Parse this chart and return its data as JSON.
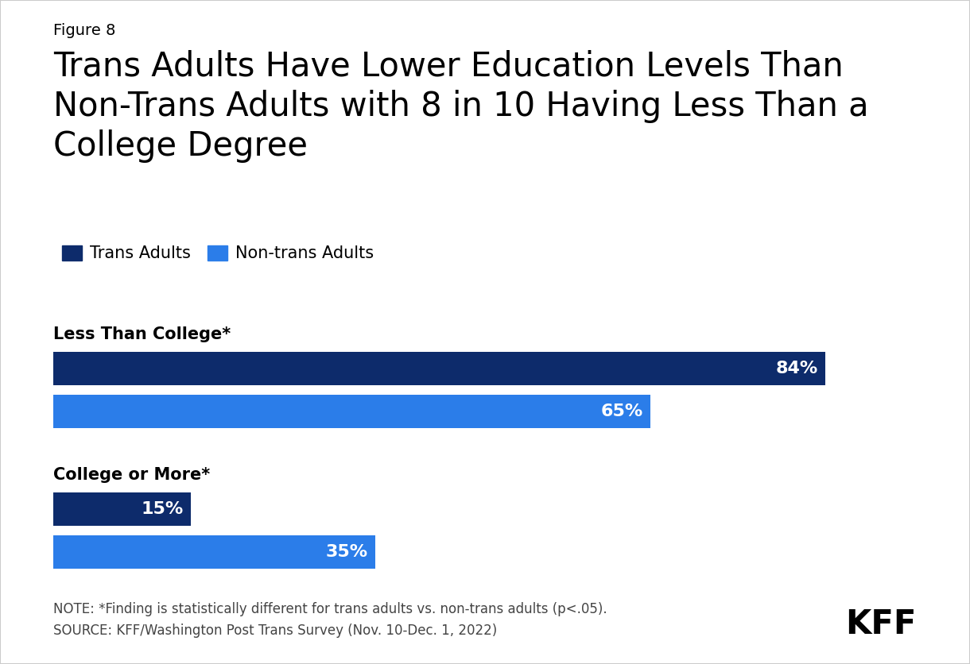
{
  "figure_label": "Figure 8",
  "title": "Trans Adults Have Lower Education Levels Than\nNon-Trans Adults with 8 in 10 Having Less Than a\nCollege Degree",
  "categories": [
    "Less Than College*",
    "College or More*"
  ],
  "trans_values": [
    84,
    15
  ],
  "nontrans_values": [
    65,
    35
  ],
  "trans_color": "#0d2b6b",
  "nontrans_color": "#2b7de9",
  "legend_labels": [
    "Trans Adults",
    "Non-trans Adults"
  ],
  "note": "NOTE: *Finding is statistically different for trans adults vs. non-trans adults (p<.05).\nSOURCE: KFF/Washington Post Trans Survey (Nov. 10-Dec. 1, 2022)",
  "kff_label": "KFF",
  "xlim": [
    0,
    95
  ],
  "background_color": "#ffffff",
  "title_fontsize": 30,
  "figure_label_fontsize": 14,
  "category_fontsize": 15,
  "note_fontsize": 12,
  "value_fontsize": 16,
  "legend_fontsize": 15
}
